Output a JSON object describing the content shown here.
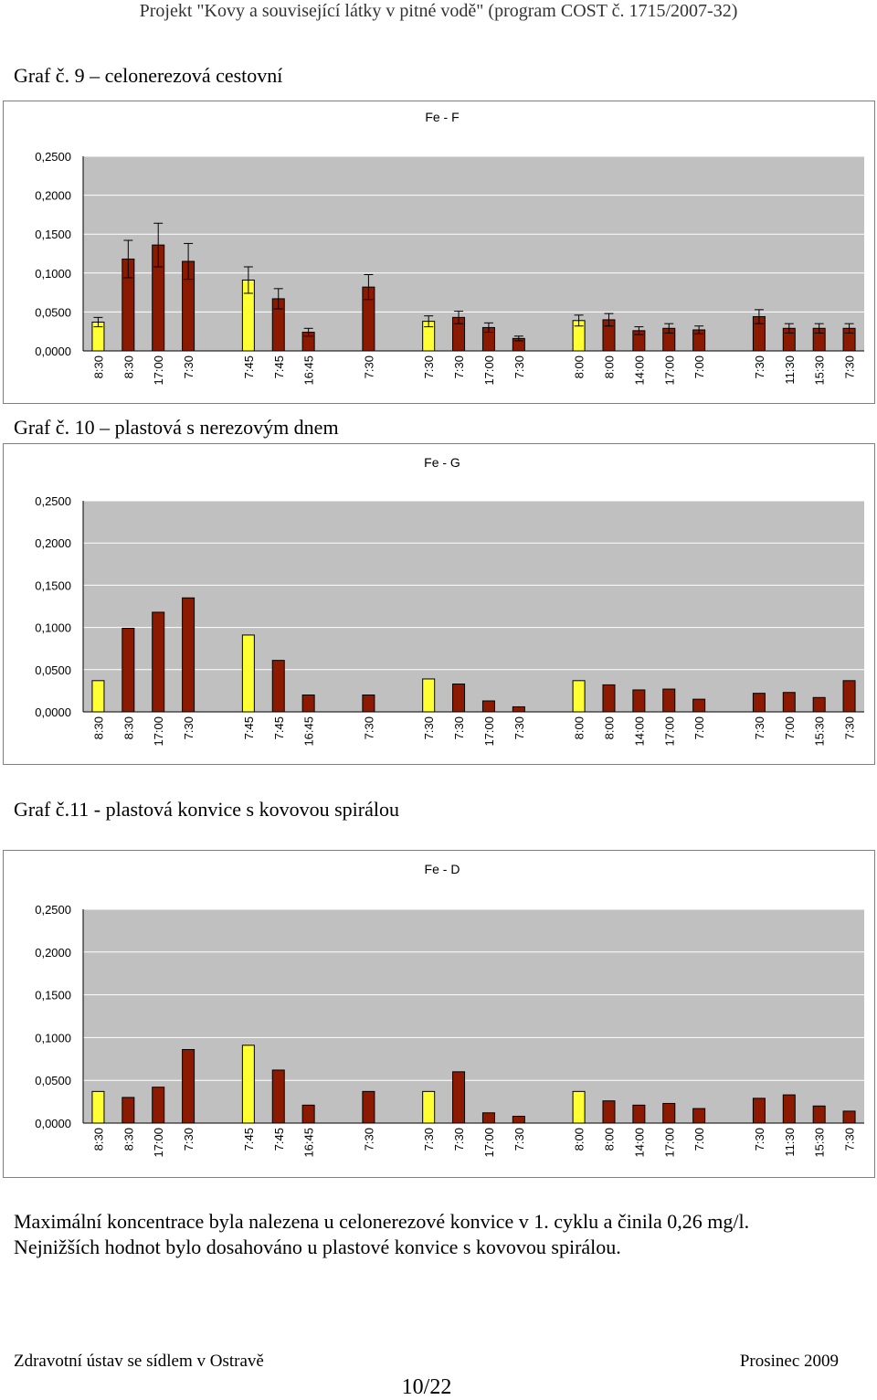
{
  "header": {
    "project": "Projekt \"Kovy a související látky v pitné vodě\" (program COST č. 1715/2007-32)"
  },
  "captions": [
    "Graf č. 9 – celonerezová cestovní",
    "Graf č. 10 – plastová s nerezovým dnem",
    "Graf č.11 - plastová konvice s kovovou spirálou"
  ],
  "conclusion": {
    "line1": "Maximální koncentrace byla nalezena u celonerezové konvice v 1. cyklu a činila 0,26 mg/l.",
    "line2": "Nejnižších hodnot bylo dosahováno u plastové konvice s kovovou spirálou."
  },
  "footer": {
    "left": "Zdravotní ústav se sídlem v Ostravě",
    "right": "Prosinec 2009",
    "page": "10/22"
  },
  "colors": {
    "plot_bg": "#c0c0c0",
    "bar_dark": "#8b1a00",
    "bar_yellow": "#ffff33",
    "grid": "#ffffff",
    "border": "#808080"
  },
  "chart_data": [
    {
      "type": "bar",
      "title": "Fe - F",
      "ylim": [
        0,
        0.25
      ],
      "yticks": [
        "0,2500",
        "0,2000",
        "0,1500",
        "0,1000",
        "0,0500",
        "0,0000"
      ],
      "categories": [
        "8:30",
        "8:30",
        "17:00",
        "7:30",
        "",
        "7:45",
        "7:45",
        "16:45",
        "",
        "7:30",
        "",
        "7:30",
        "7:30",
        "17:00",
        "7:30",
        "",
        "8:00",
        "8:00",
        "14:00",
        "17:00",
        "7:00",
        "",
        "7:30",
        "11:30",
        "15:30",
        "7:30"
      ],
      "values": [
        0.037,
        0.118,
        0.136,
        0.115,
        null,
        0.091,
        0.067,
        0.024,
        null,
        0.082,
        null,
        0.038,
        0.043,
        0.03,
        0.016,
        null,
        0.039,
        0.04,
        0.026,
        0.029,
        0.027,
        null,
        0.044,
        0.029,
        0.029,
        0.029
      ],
      "error": [
        0.006,
        0.024,
        0.028,
        0.023,
        null,
        0.017,
        0.013,
        0.005,
        null,
        0.016,
        null,
        0.007,
        0.008,
        0.006,
        0.003,
        null,
        0.007,
        0.008,
        0.005,
        0.006,
        0.005,
        null,
        0.009,
        0.006,
        0.006,
        0.006
      ],
      "highlight": [
        true,
        false,
        false,
        false,
        false,
        true,
        false,
        false,
        false,
        false,
        false,
        true,
        false,
        false,
        false,
        false,
        true,
        false,
        false,
        false,
        false,
        false,
        false,
        false,
        false,
        false
      ],
      "grid": true,
      "legend": "none"
    },
    {
      "type": "bar",
      "title": "Fe - G",
      "ylim": [
        0,
        0.25
      ],
      "yticks": [
        "0,2500",
        "0,2000",
        "0,1500",
        "0,1000",
        "0,0500",
        "0,0000"
      ],
      "categories": [
        "8:30",
        "8:30",
        "17:00",
        "7:30",
        "",
        "7:45",
        "7:45",
        "16:45",
        "",
        "7:30",
        "",
        "7:30",
        "7:30",
        "17:00",
        "7:30",
        "",
        "8:00",
        "8:00",
        "14:00",
        "17:00",
        "7:00",
        "",
        "7:30",
        "7:00",
        "15:30",
        "7:30"
      ],
      "values": [
        0.037,
        0.099,
        0.118,
        0.135,
        null,
        0.091,
        0.061,
        0.02,
        null,
        0.02,
        null,
        0.039,
        0.033,
        0.013,
        0.006,
        null,
        0.037,
        0.032,
        0.026,
        0.027,
        0.015,
        null,
        0.022,
        0.023,
        0.017,
        0.037
      ],
      "highlight": [
        true,
        false,
        false,
        false,
        false,
        true,
        false,
        false,
        false,
        false,
        false,
        true,
        false,
        false,
        false,
        false,
        true,
        false,
        false,
        false,
        false,
        false,
        false,
        false,
        false,
        false
      ],
      "grid": true,
      "legend": "none"
    },
    {
      "type": "bar",
      "title": "Fe - D",
      "ylim": [
        0,
        0.25
      ],
      "yticks": [
        "0,2500",
        "0,2000",
        "0,1500",
        "0,1000",
        "0,0500",
        "0,0000"
      ],
      "categories": [
        "8:30",
        "8:30",
        "17:00",
        "7:30",
        "",
        "7:45",
        "7:45",
        "16:45",
        "",
        "7:30",
        "",
        "7:30",
        "7:30",
        "17:00",
        "7:30",
        "",
        "8:00",
        "8:00",
        "14:00",
        "17:00",
        "7:00",
        "",
        "7:30",
        "11:30",
        "15:30",
        "7:30"
      ],
      "values": [
        0.037,
        0.03,
        0.042,
        0.086,
        null,
        0.091,
        0.062,
        0.021,
        null,
        0.037,
        null,
        0.037,
        0.06,
        0.012,
        0.008,
        null,
        0.037,
        0.026,
        0.021,
        0.023,
        0.017,
        null,
        0.029,
        0.033,
        0.02,
        0.014
      ],
      "highlight": [
        true,
        false,
        false,
        false,
        false,
        true,
        false,
        false,
        false,
        false,
        false,
        true,
        false,
        false,
        false,
        false,
        true,
        false,
        false,
        false,
        false,
        false,
        false,
        false,
        false,
        false
      ],
      "grid": true,
      "legend": "none"
    }
  ]
}
